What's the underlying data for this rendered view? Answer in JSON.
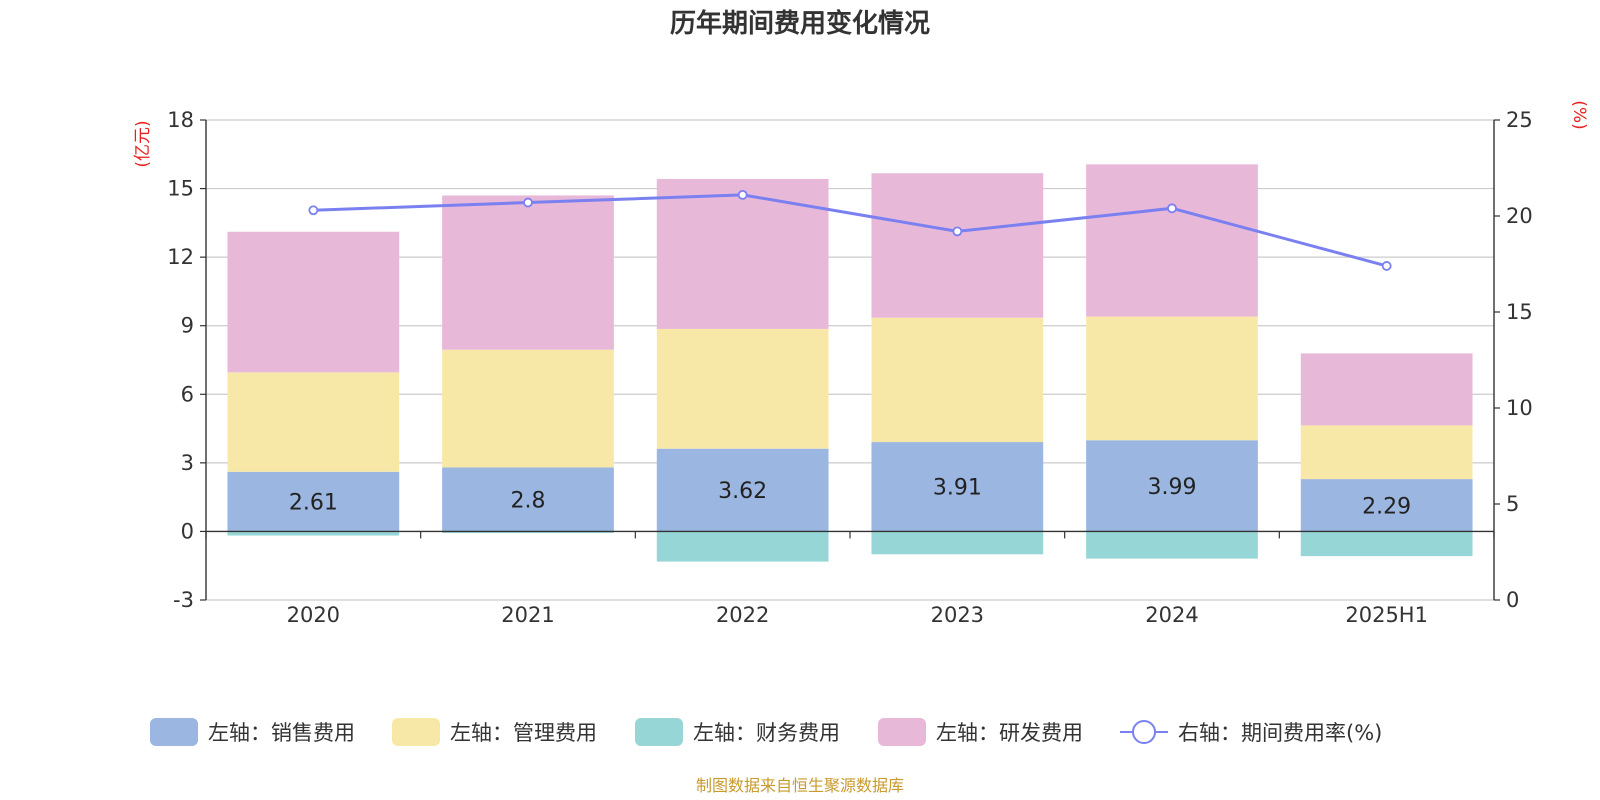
{
  "chart_data": {
    "type": "bar",
    "title": "历年期间费用变化情况",
    "categories": [
      "2020",
      "2021",
      "2022",
      "2023",
      "2024",
      "2025H1"
    ],
    "series": [
      {
        "name": "左轴：销售费用",
        "axis": "left",
        "stack": "cost",
        "color": "#9bb7e1",
        "values": [
          2.61,
          2.8,
          3.62,
          3.91,
          3.99,
          2.29
        ],
        "show_labels": true
      },
      {
        "name": "左轴：管理费用",
        "axis": "left",
        "stack": "cost",
        "color": "#f8e8a8",
        "values": [
          4.35,
          5.15,
          5.24,
          5.44,
          5.41,
          2.35
        ],
        "show_labels": false
      },
      {
        "name": "左轴：财务费用",
        "axis": "left",
        "stack": "cost",
        "color": "#97d6d6",
        "values": [
          -0.18,
          -0.07,
          -1.32,
          -1.0,
          -1.19,
          -1.08
        ],
        "show_labels": false
      },
      {
        "name": "左轴：研发费用",
        "axis": "left",
        "stack": "cost",
        "color": "#e8b8d9",
        "values": [
          6.15,
          6.75,
          6.56,
          6.32,
          6.66,
          3.15
        ],
        "show_labels": false
      },
      {
        "name": "右轴：期间费用率(%)",
        "axis": "right",
        "type": "line",
        "color": "#7b80f0",
        "values": [
          20.3,
          20.7,
          21.1,
          19.2,
          20.4,
          17.4
        ]
      }
    ],
    "left_axis": {
      "unit": "(亿元)",
      "ylim": [
        -3,
        18
      ],
      "ticks": [
        "-3",
        "0",
        "3",
        "6",
        "9",
        "12",
        "15",
        "18"
      ]
    },
    "right_axis": {
      "unit": "(%)",
      "ylim": [
        0,
        25
      ],
      "ticks": [
        "0",
        "5",
        "10",
        "15",
        "20",
        "25"
      ]
    },
    "grid": true,
    "legend_position": "bottom"
  },
  "footer": {
    "source": "制图数据来自恒生聚源数据库"
  }
}
